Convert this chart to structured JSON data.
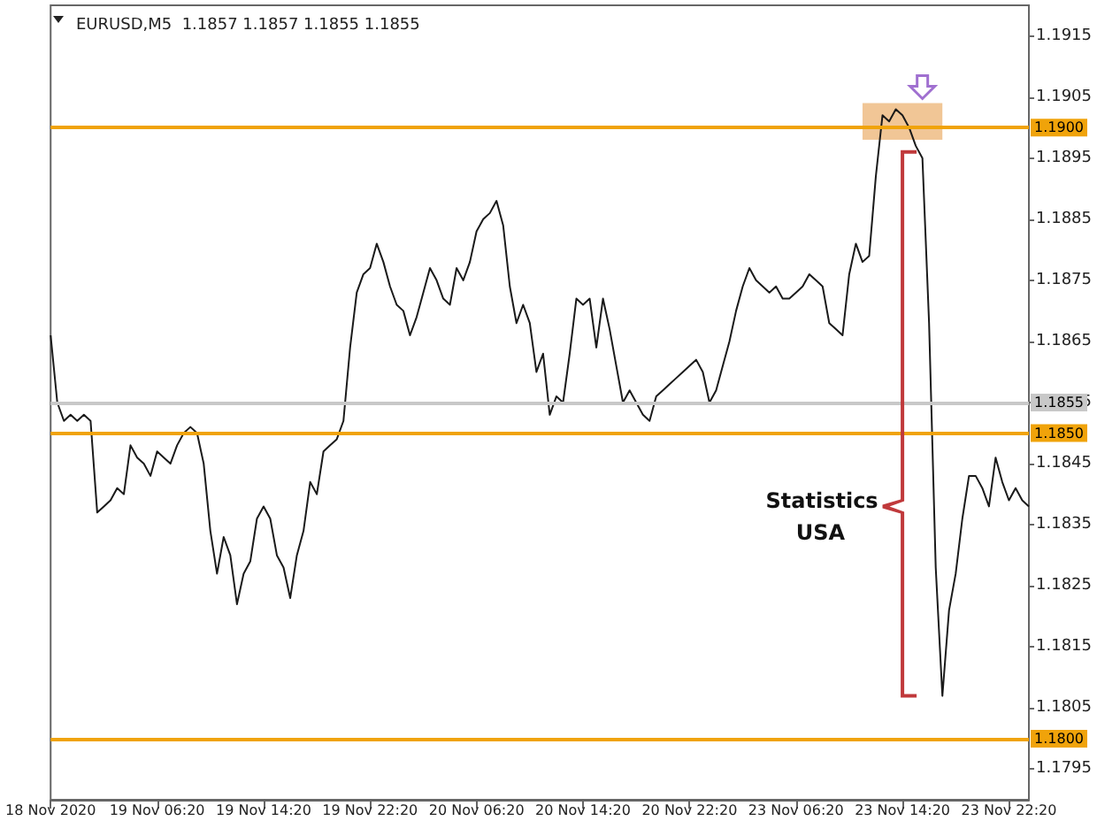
{
  "chart_data": {
    "type": "line",
    "title": "EURUSD,M5  1.1857 1.1857 1.1855 1.1855",
    "categories": [
      "18 Nov 2020",
      null,
      null,
      null,
      null,
      null,
      null,
      null,
      null,
      null,
      null,
      null,
      null,
      null,
      null,
      null,
      "19 Nov 06:20",
      null,
      null,
      null,
      null,
      null,
      null,
      null,
      null,
      null,
      null,
      null,
      null,
      null,
      null,
      null,
      "19 Nov 14:20",
      null,
      null,
      null,
      null,
      null,
      null,
      null,
      null,
      null,
      null,
      null,
      null,
      null,
      null,
      null,
      "19 Nov 22:20",
      null,
      null,
      null,
      null,
      null,
      null,
      null,
      null,
      null,
      null,
      null,
      null,
      null,
      null,
      null,
      "20 Nov 06:20",
      null,
      null,
      null,
      null,
      null,
      null,
      null,
      null,
      null,
      null,
      null,
      null,
      null,
      null,
      null,
      "20 Nov 14:20",
      null,
      null,
      null,
      null,
      null,
      null,
      null,
      null,
      null,
      null,
      null,
      null,
      null,
      null,
      null,
      "20 Nov 22:20",
      null,
      null,
      null,
      null,
      null,
      null,
      null,
      null,
      null,
      null,
      null,
      null,
      null,
      null,
      null,
      "23 Nov 06:20",
      null,
      null,
      null,
      null,
      null,
      null,
      null,
      null,
      null,
      null,
      null,
      null,
      null,
      null,
      null,
      "23 Nov 14:20",
      null,
      null,
      null,
      null,
      null,
      null,
      null,
      null,
      null,
      null,
      null,
      null,
      null,
      null,
      null,
      "23 Nov 22:20",
      null,
      null,
      null
    ],
    "series": [
      {
        "color": "#1a1a1a",
        "values": [
          1.1866,
          1.1855,
          1.1852,
          1.1853,
          1.1852,
          1.1853,
          1.1852,
          1.1837,
          1.1838,
          1.1839,
          1.1841,
          1.184,
          1.1848,
          1.1846,
          1.1845,
          1.1843,
          1.1847,
          1.1846,
          1.1845,
          1.1848,
          1.185,
          1.1851,
          1.185,
          1.1845,
          1.1834,
          1.1827,
          1.1833,
          1.183,
          1.1822,
          1.1827,
          1.1829,
          1.1836,
          1.1838,
          1.1836,
          1.183,
          1.1828,
          1.1823,
          1.183,
          1.1834,
          1.1842,
          1.184,
          1.1847,
          1.1848,
          1.1849,
          1.1852,
          1.1864,
          1.1873,
          1.1876,
          1.1877,
          1.1881,
          1.1878,
          1.1874,
          1.1871,
          1.187,
          1.1866,
          1.1869,
          1.1873,
          1.1877,
          1.1875,
          1.1872,
          1.1871,
          1.1877,
          1.1875,
          1.1878,
          1.1883,
          1.1885,
          1.1886,
          1.1888,
          1.1884,
          1.1874,
          1.1868,
          1.1871,
          1.1868,
          1.186,
          1.1863,
          1.1853,
          1.1856,
          1.1855,
          1.1863,
          1.1872,
          1.1871,
          1.1872,
          1.1864,
          1.1872,
          1.1867,
          1.1861,
          1.1855,
          1.1857,
          1.1855,
          1.1853,
          1.1852,
          1.1856,
          1.1857,
          1.1858,
          1.1859,
          1.186,
          1.1861,
          1.1862,
          1.186,
          1.1855,
          1.1857,
          1.1861,
          1.1865,
          1.187,
          1.1874,
          1.1877,
          1.1875,
          1.1874,
          1.1873,
          1.1874,
          1.1872,
          1.1872,
          1.1873,
          1.1874,
          1.1876,
          1.1875,
          1.1874,
          1.1868,
          1.1867,
          1.1866,
          1.1876,
          1.1881,
          1.1878,
          1.1879,
          1.1892,
          1.1902,
          1.1901,
          1.1903,
          1.1902,
          1.19,
          1.1897,
          1.1895,
          1.1868,
          1.1828,
          1.1807,
          1.1821,
          1.1827,
          1.1836,
          1.1843,
          1.1843,
          1.1841,
          1.1838,
          1.1846,
          1.1842,
          1.1839,
          1.1841,
          1.1839,
          1.1838
        ]
      }
    ],
    "ylim": [
      1.179,
      1.192
    ],
    "yticks": [
      1.1795,
      1.1805,
      1.1815,
      1.1825,
      1.1835,
      1.1845,
      1.1855,
      1.1865,
      1.1875,
      1.1885,
      1.1895,
      1.1905,
      1.1915
    ],
    "ref_lines": [
      {
        "axis": "y",
        "value": 1.19,
        "label": "1.1900",
        "color": "#f0a30a"
      },
      {
        "axis": "y",
        "value": 1.185,
        "label": "1.1850",
        "color": "#f0a30a"
      },
      {
        "axis": "y",
        "value": 1.18,
        "label": "1.1800",
        "color": "#f0a30a"
      },
      {
        "axis": "y",
        "value": 1.1855,
        "label": "1.1855",
        "color": "#c8c8c8"
      }
    ],
    "annotations": [
      "Statistics USA"
    ],
    "grid": false,
    "marker": "none",
    "line_style": "solid"
  }
}
